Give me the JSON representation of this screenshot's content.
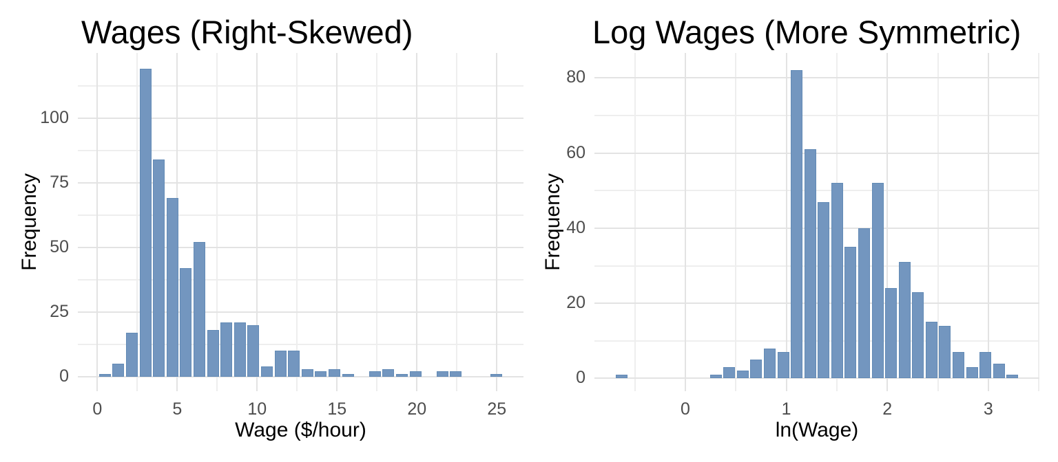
{
  "figure": {
    "background": "#ffffff",
    "bar_fill": "#7396BF",
    "bar_border": "#628AB5",
    "grid_major_color": "#e3e3e3",
    "grid_minor_color": "#eeeeee",
    "tick_label_color": "#4d4d4d",
    "title_color": "#000000"
  },
  "chart_data": [
    {
      "type": "bar",
      "subtype": "histogram",
      "title": "Wages (Right-Skewed)",
      "xlabel": "Wage ($/hour)",
      "ylabel": "Frequency",
      "binwidth": 0.845,
      "bin_centers": [
        0.47,
        1.315,
        2.16,
        3.005,
        3.85,
        4.695,
        5.54,
        6.385,
        7.23,
        8.075,
        8.92,
        9.765,
        10.61,
        11.455,
        12.3,
        13.145,
        13.99,
        14.835,
        15.68,
        16.525,
        17.37,
        18.215,
        19.06,
        19.905,
        20.75,
        21.595,
        22.44,
        23.285,
        24.13,
        24.975
      ],
      "counts": [
        1,
        5,
        17,
        119,
        84,
        69,
        42,
        52,
        18,
        21,
        21,
        20,
        4,
        10,
        10,
        3,
        2,
        3,
        1,
        0,
        2,
        3,
        1,
        2,
        0,
        2,
        2,
        0,
        0,
        1
      ],
      "x_ticks_major": [
        0,
        5,
        10,
        15,
        20,
        25
      ],
      "x_ticks_minor": [
        2.5,
        7.5,
        12.5,
        17.5,
        22.5
      ],
      "y_ticks_major": [
        0,
        25,
        50,
        75,
        100
      ],
      "y_ticks_minor": [
        12.5,
        37.5,
        62.5,
        87.5,
        112.5
      ],
      "xlim": [
        -1.22,
        26.67
      ],
      "ylim": [
        -5.6,
        125.2
      ],
      "grid": true,
      "legend": "none"
    },
    {
      "type": "bar",
      "subtype": "histogram",
      "title": "Log Wages (More Symmetric)",
      "xlabel": "ln(Wage)",
      "ylabel": "Frequency",
      "binwidth": 0.1335,
      "bin_centers": [
        -0.633,
        -0.4995,
        -0.366,
        -0.2325,
        -0.099,
        0.0345,
        0.168,
        0.3015,
        0.435,
        0.5685,
        0.702,
        0.8355,
        0.969,
        1.1025,
        1.236,
        1.3695,
        1.503,
        1.6365,
        1.77,
        1.9035,
        2.037,
        2.1705,
        2.304,
        2.4375,
        2.571,
        2.7045,
        2.838,
        2.9715,
        3.105,
        3.2385
      ],
      "counts": [
        1,
        0,
        0,
        0,
        0,
        0,
        0,
        1,
        3,
        2,
        5,
        8,
        7,
        82,
        61,
        47,
        52,
        35,
        40,
        52,
        24,
        31,
        23,
        15,
        14,
        7,
        3,
        7,
        4,
        1
      ],
      "x_ticks_major": [
        0,
        1,
        2,
        3
      ],
      "x_ticks_minor": [
        -0.5,
        0.5,
        1.5,
        2.5,
        3.5
      ],
      "y_ticks_major": [
        0,
        20,
        40,
        60,
        80
      ],
      "y_ticks_minor": [
        10,
        30,
        50,
        70
      ],
      "xlim": [
        -0.9,
        3.506
      ],
      "ylim": [
        -3.4,
        86.65
      ],
      "grid": true,
      "legend": "none"
    }
  ]
}
